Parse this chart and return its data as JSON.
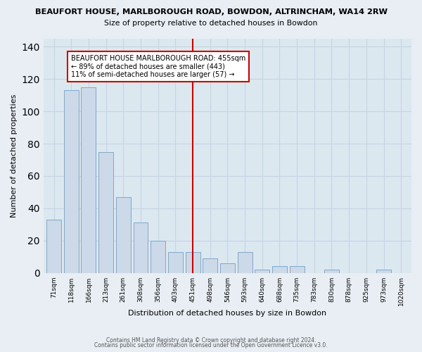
{
  "title": "BEAUFORT HOUSE, MARLBOROUGH ROAD, BOWDON, ALTRINCHAM, WA14 2RW",
  "subtitle": "Size of property relative to detached houses in Bowdon",
  "xlabel": "Distribution of detached houses by size in Bowdon",
  "ylabel": "Number of detached properties",
  "bar_color": "#ccd9e8",
  "bar_edge_color": "#7fa8cc",
  "categories": [
    "71sqm",
    "118sqm",
    "166sqm",
    "213sqm",
    "261sqm",
    "308sqm",
    "356sqm",
    "403sqm",
    "451sqm",
    "498sqm",
    "546sqm",
    "593sqm",
    "640sqm",
    "688sqm",
    "735sqm",
    "783sqm",
    "830sqm",
    "878sqm",
    "925sqm",
    "973sqm",
    "1020sqm"
  ],
  "values": [
    33,
    113,
    115,
    75,
    47,
    31,
    20,
    13,
    13,
    9,
    6,
    13,
    2,
    4,
    4,
    0,
    2,
    0,
    0,
    2,
    0
  ],
  "vline_x": 8,
  "vline_color": "#cc0000",
  "annotation_title": "BEAUFORT HOUSE MARLBOROUGH ROAD: 455sqm",
  "annotation_line1": "← 89% of detached houses are smaller (443)",
  "annotation_line2": "11% of semi-detached houses are larger (57) →",
  "annotation_box_color": "#ffffff",
  "annotation_box_edge": "#cc0000",
  "ylim": [
    0,
    145
  ],
  "footnote1": "Contains HM Land Registry data © Crown copyright and database right 2024.",
  "footnote2": "Contains public sector information licensed under the Open Government Licence v3.0.",
  "background_color": "#e8eef4",
  "plot_bg_color": "#dce8f0",
  "grid_color": "#c5d5e5"
}
